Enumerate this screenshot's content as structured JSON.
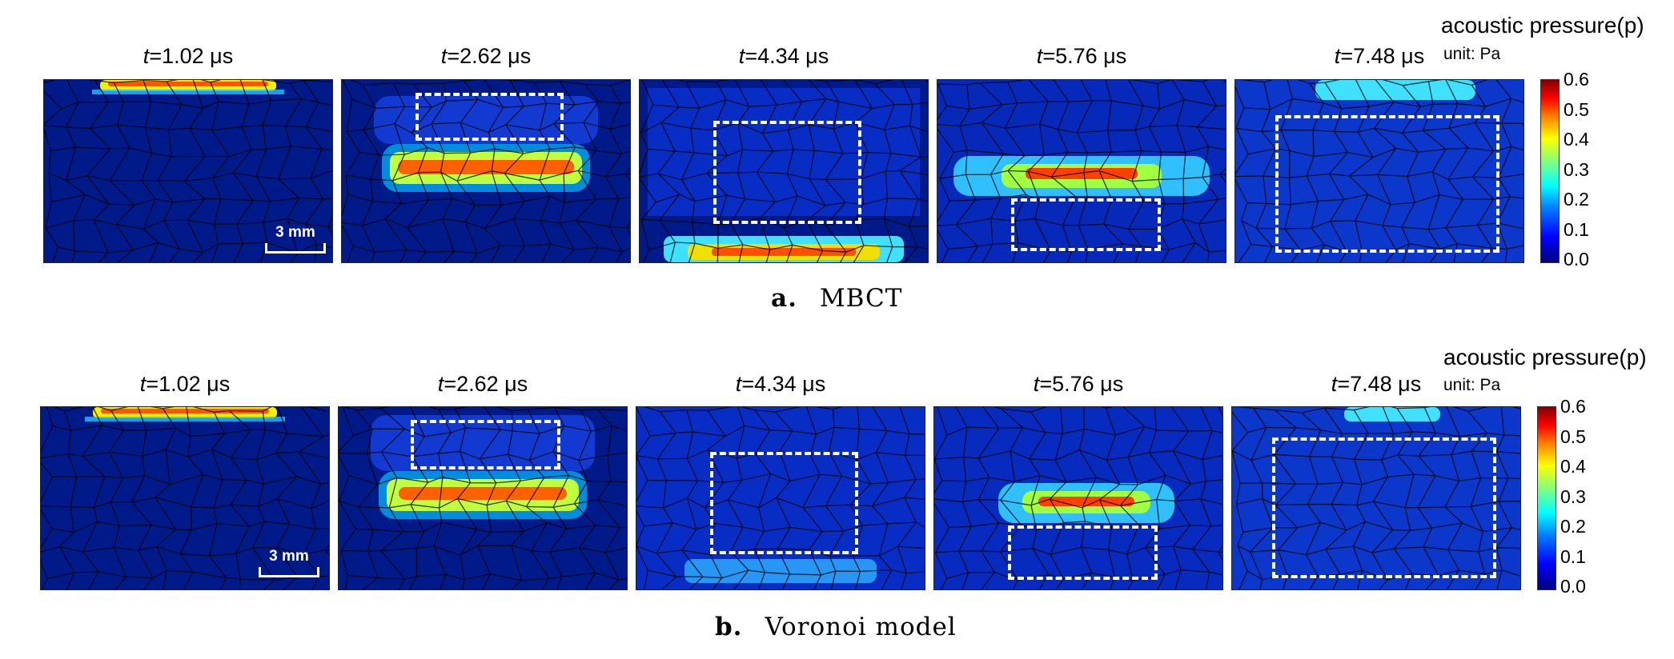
{
  "rows": [
    {
      "caption_letter": "a.",
      "caption_text": "MBCT",
      "panels": [
        {
          "time_var": "t",
          "time_value": "=1.02 μs"
        },
        {
          "time_var": "t",
          "time_value": "=2.62 μs"
        },
        {
          "time_var": "t",
          "time_value": "=4.34 μs"
        },
        {
          "time_var": "t",
          "time_value": "=5.76 μs"
        },
        {
          "time_var": "t",
          "time_value": "=7.48 μs"
        }
      ],
      "scale_bar": "3 mm",
      "colorbar": {
        "title": "acoustic pressure(p)",
        "unit": "unit: Pa",
        "ticks": [
          "0.6",
          "0.5",
          "0.4",
          "0.3",
          "0.2",
          "0.1",
          "0.0"
        ]
      }
    },
    {
      "caption_letter": "b.",
      "caption_text": "Voronoi model",
      "panels": [
        {
          "time_var": "t",
          "time_value": "=1.02 μs"
        },
        {
          "time_var": "t",
          "time_value": "=2.62 μs"
        },
        {
          "time_var": "t",
          "time_value": "=4.34 μs"
        },
        {
          "time_var": "t",
          "time_value": "=5.76 μs"
        },
        {
          "time_var": "t",
          "time_value": "=7.48 μs"
        }
      ],
      "scale_bar": "3 mm",
      "colorbar": {
        "title": "acoustic pressure(p)",
        "unit": "unit: Pa",
        "ticks": [
          "0.6",
          "0.5",
          "0.4",
          "0.3",
          "0.2",
          "0.1",
          "0.0"
        ]
      }
    }
  ],
  "colors": {
    "background": "#001a8a",
    "grain_lines": "#000000",
    "highlight_box": "#ffffff"
  }
}
